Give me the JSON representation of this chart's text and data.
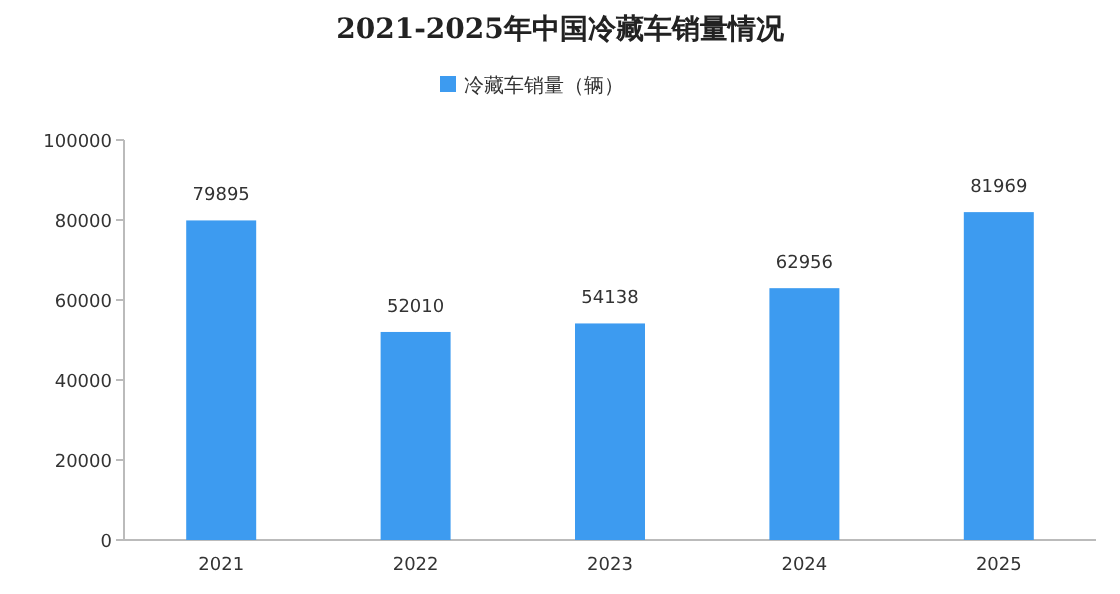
{
  "chart_data": {
    "type": "bar",
    "title": "2021-2025年中国冷藏车销量情况",
    "categories": [
      "2021",
      "2022",
      "2023",
      "2024",
      "2025"
    ],
    "series": [
      {
        "name": "冷藏车销量（辆）",
        "color": "#3d9bf0",
        "values": [
          79895,
          52010,
          54138,
          62956,
          81969
        ]
      }
    ],
    "ylim": [
      0,
      100000
    ],
    "yticks": [
      0,
      20000,
      40000,
      60000,
      80000,
      100000
    ],
    "data_labels": true,
    "legend": "top",
    "grid": false
  }
}
